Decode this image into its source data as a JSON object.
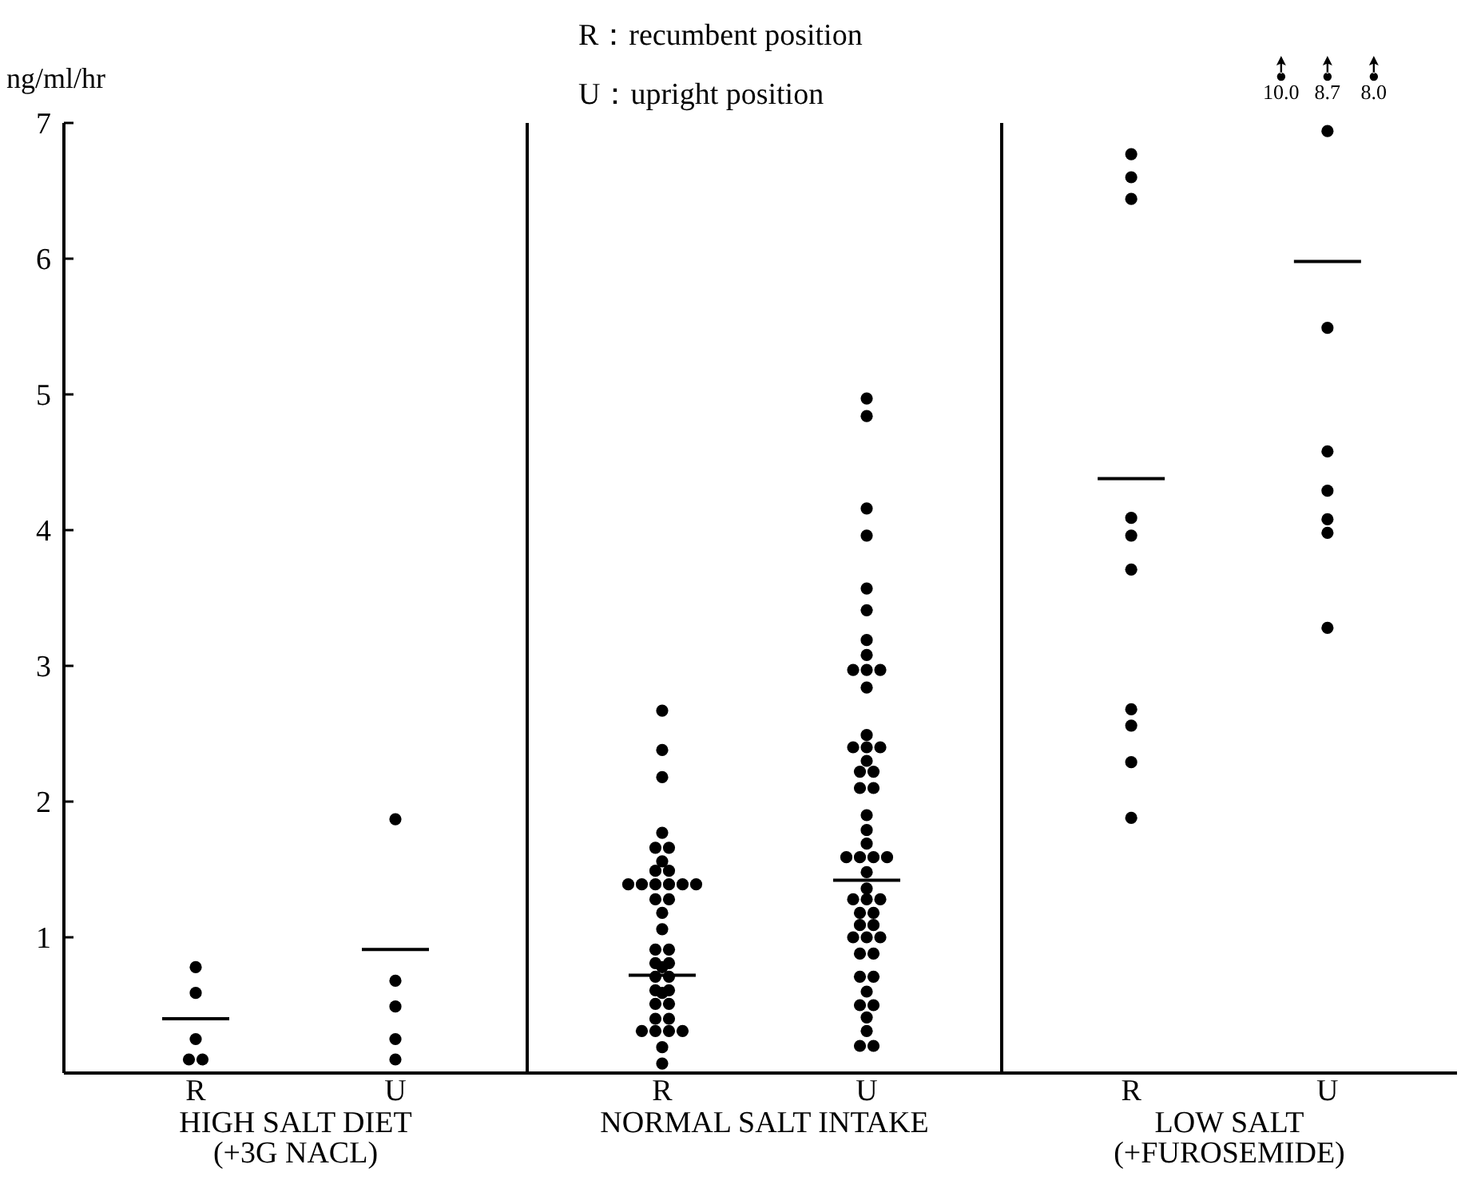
{
  "chart_data": [
    {
      "type": "scatter",
      "categories": [
        "R",
        "U"
      ],
      "xlabel": "HIGH SALT DIET\n(+3G NACL)",
      "ylabel": "ng/ml/hr",
      "ylim": [
        0,
        7
      ],
      "yticks": [
        1,
        2,
        3,
        4,
        5,
        6,
        7
      ],
      "marker": "circle",
      "series": [
        {
          "color": "#000000",
          "x": [
            "R",
            "R",
            "R",
            "R",
            "R",
            "U",
            "U",
            "U",
            "U",
            "U"
          ],
          "values": [
            0.78,
            0.59,
            0.25,
            0.1,
            0.1,
            1.87,
            0.68,
            0.49,
            0.25,
            0.1
          ]
        }
      ],
      "ref_lines": [
        {
          "axis": "y",
          "value": 0.4
        },
        {
          "axis": "y",
          "value": 0.91
        }
      ]
    },
    {
      "type": "scatter",
      "categories": [
        "R",
        "U"
      ],
      "xlabel": "NORMAL SALT INTAKE",
      "ylim": [
        0,
        7
      ],
      "tick_labels": "x",
      "marker": "circle",
      "annotations": [
        "R：recumbent position",
        "U：upright position"
      ],
      "series": [
        {
          "color": "#000000",
          "x": [
            "R",
            "R",
            "R",
            "R",
            "R",
            "R",
            "R",
            "R",
            "R",
            "R",
            "R",
            "R",
            "R",
            "R",
            "R",
            "R",
            "R",
            "R",
            "R",
            "R",
            "R",
            "R",
            "R",
            "R",
            "R",
            "R",
            "R",
            "R",
            "R",
            "R",
            "R",
            "R",
            "R",
            "R",
            "R",
            "R",
            "R",
            "R",
            "R",
            "U",
            "U",
            "U",
            "U",
            "U",
            "U",
            "U",
            "U",
            "U",
            "U",
            "U",
            "U",
            "U",
            "U",
            "U",
            "U",
            "U",
            "U",
            "U",
            "U",
            "U",
            "U",
            "U",
            "U",
            "U",
            "U",
            "U",
            "U",
            "U",
            "U",
            "U",
            "U",
            "U",
            "U",
            "U",
            "U",
            "U",
            "U",
            "U",
            "U",
            "U",
            "U",
            "U",
            "U",
            "U",
            "U",
            "U",
            "U",
            "U",
            "U",
            "U"
          ],
          "values": [
            2.67,
            2.38,
            2.18,
            1.77,
            1.66,
            1.66,
            1.56,
            1.49,
            1.49,
            1.39,
            1.39,
            1.39,
            1.39,
            1.39,
            1.39,
            1.28,
            1.28,
            1.18,
            1.06,
            0.91,
            0.91,
            0.81,
            0.81,
            0.78,
            0.71,
            0.71,
            0.61,
            0.61,
            0.59,
            0.51,
            0.51,
            0.4,
            0.4,
            0.31,
            0.31,
            0.31,
            0.31,
            0.19,
            0.07,
            4.97,
            4.84,
            4.16,
            3.96,
            3.57,
            3.41,
            3.19,
            3.08,
            2.97,
            2.97,
            2.97,
            2.84,
            2.49,
            2.4,
            2.4,
            2.4,
            2.3,
            2.22,
            2.22,
            2.1,
            2.1,
            1.9,
            1.79,
            1.69,
            1.59,
            1.59,
            1.59,
            1.59,
            1.48,
            1.36,
            1.28,
            1.28,
            1.28,
            1.18,
            1.18,
            1.09,
            1.09,
            1,
            1,
            1,
            0.88,
            0.88,
            0.71,
            0.71,
            0.6,
            0.5,
            0.5,
            0.41,
            0.31,
            0.2,
            0.2
          ]
        }
      ],
      "ref_lines": [
        {
          "axis": "y",
          "value": 0.72
        },
        {
          "axis": "y",
          "value": 1.42
        }
      ]
    },
    {
      "type": "scatter",
      "categories": [
        "R",
        "U"
      ],
      "xlabel": "LOW SALT\n(+FUROSEMIDE)",
      "ylim": [
        0,
        7
      ],
      "tick_labels": "x",
      "marker": "circle",
      "annotations": [
        "10.0",
        "8.7",
        "8.0"
      ],
      "series": [
        {
          "color": "#000000",
          "x": [
            "R",
            "R",
            "R",
            "R",
            "R",
            "R",
            "R",
            "R",
            "R",
            "R",
            "U",
            "U",
            "U",
            "U",
            "U",
            "U",
            "U"
          ],
          "values": [
            6.77,
            6.6,
            6.44,
            4.09,
            3.96,
            3.71,
            2.68,
            2.56,
            2.29,
            1.88,
            6.94,
            5.49,
            4.58,
            4.29,
            4.08,
            3.98,
            3.28
          ]
        }
      ],
      "ref_lines": [
        {
          "axis": "y",
          "value": 4.38
        },
        {
          "axis": "y",
          "value": 5.98
        }
      ]
    }
  ]
}
